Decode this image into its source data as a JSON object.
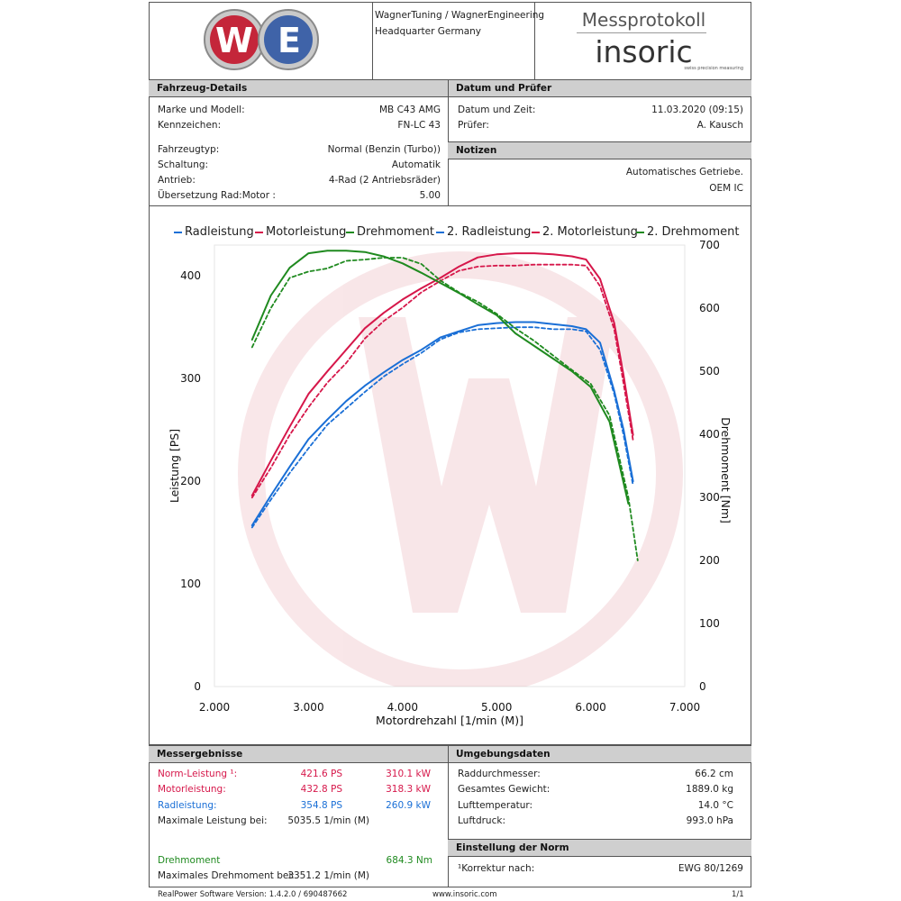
{
  "header": {
    "company_line1": "WagnerTuning / WagnerEngineering",
    "company_line2": "Headquarter Germany",
    "protocol_title": "Messprotokoll",
    "brand": "insoric",
    "brand_tagline": "swiss precision measuring",
    "logo_letters": "WTWE"
  },
  "vehicle": {
    "title": "Fahrzeug-Details",
    "rows": [
      {
        "label": "Marke und Modell:",
        "value": "MB C43 AMG"
      },
      {
        "label": "Kennzeichen:",
        "value": "FN-LC 43"
      },
      {
        "label": "Fahrzeugtyp:",
        "value": "Normal (Benzin (Turbo))"
      },
      {
        "label": "Schaltung:",
        "value": "Automatik"
      },
      {
        "label": "Antrieb:",
        "value": "4-Rad (2 Antriebsräder)"
      },
      {
        "label": "Übersetzung Rad:Motor :",
        "value": "5.00"
      }
    ]
  },
  "date": {
    "title": "Datum und Prüfer",
    "rows": [
      {
        "label": "Datum und Zeit:",
        "value": "11.03.2020 (09:15)"
      },
      {
        "label": "Prüfer:",
        "value": "A. Kausch"
      }
    ]
  },
  "notes": {
    "title": "Notizen",
    "line1": "Automatisches Getriebe.",
    "line2": "OEM IC"
  },
  "results": {
    "title": "Messergebnisse",
    "norm": {
      "label": "Norm-Leistung ¹:",
      "ps": "421.6 PS",
      "kw": "310.1 kW"
    },
    "motor": {
      "label": "Motorleistung:",
      "ps": "432.8 PS",
      "kw": "318.3 kW"
    },
    "rad": {
      "label": "Radleistung:",
      "ps": "354.8 PS",
      "kw": "260.9 kW"
    },
    "max_power": {
      "label": "Maximale Leistung bei:",
      "value": "5035.5 1/min (M)"
    },
    "torque": {
      "label": "Drehmoment",
      "value": "684.3 Nm"
    },
    "max_torque": {
      "label": "Maximales Drehmoment bei:",
      "value": "3351.2 1/min (M)"
    }
  },
  "environment": {
    "title": "Umgebungsdaten",
    "rows": [
      {
        "label": "Raddurchmesser:",
        "value": "66.2 cm"
      },
      {
        "label": "Gesamtes Gewicht:",
        "value": "1889.0 kg"
      },
      {
        "label": "Lufttemperatur:",
        "value": "14.0 °C"
      },
      {
        "label": "Luftdruck:",
        "value": "993.0 hPa"
      }
    ]
  },
  "norm_setting": {
    "title": "Einstellung der Norm",
    "label": "¹Korrektur nach:",
    "value": "EWG 80/1269"
  },
  "footer": {
    "software": "RealPower Software Version: 1.4.2.0 / 690487662",
    "website": "www.insoric.com",
    "page": "1/1"
  },
  "colors": {
    "power_wheel": "#1a6fd6",
    "power_engine": "#d6174a",
    "torque": "#1f8a1f",
    "section_bar": "#cfcfcf"
  },
  "chart_data": {
    "type": "line",
    "xlabel": "Motordrehzahl [1/min (M)]",
    "ylabel": "Leistung [PS]",
    "y2label": "Drehmoment [Nm]",
    "xlim": [
      2000,
      7000
    ],
    "ylim": [
      0,
      430
    ],
    "y2lim": [
      0,
      700
    ],
    "x_ticks": [
      2000,
      3000,
      4000,
      5000,
      6000,
      7000
    ],
    "x_tick_labels": [
      "2.000",
      "3.000",
      "4.000",
      "5.000",
      "6.000",
      "7.000"
    ],
    "y_ticks": [
      0,
      100,
      200,
      300,
      400
    ],
    "y2_ticks": [
      0,
      100,
      200,
      300,
      400,
      500,
      600,
      700
    ],
    "legend_position": "top",
    "grid": false,
    "series": [
      {
        "name": "Radleistung",
        "axis": "left",
        "style": "solid",
        "color": "#1a6fd6",
        "x": [
          2400,
          2600,
          2800,
          3000,
          3200,
          3400,
          3600,
          3800,
          4000,
          4200,
          4400,
          4600,
          4800,
          5000,
          5200,
          5400,
          5600,
          5800,
          5950,
          6100,
          6250,
          6350,
          6450
        ],
        "y": [
          157,
          186,
          214,
          241,
          260,
          278,
          293,
          306,
          318,
          328,
          340,
          346,
          352,
          354,
          355,
          355,
          353,
          351,
          348,
          335,
          288,
          250,
          200
        ]
      },
      {
        "name": "Motorleistung",
        "axis": "left",
        "style": "solid",
        "color": "#d6174a",
        "x": [
          2400,
          2600,
          2800,
          3000,
          3200,
          3400,
          3600,
          3800,
          4000,
          4200,
          4400,
          4600,
          4800,
          5000,
          5200,
          5400,
          5600,
          5800,
          5950,
          6100,
          6250,
          6350,
          6450
        ],
        "y": [
          186,
          220,
          253,
          285,
          307,
          328,
          349,
          364,
          377,
          388,
          398,
          409,
          418,
          421,
          422,
          422,
          421,
          419,
          416,
          397,
          354,
          303,
          245
        ]
      },
      {
        "name": "Drehmoment",
        "axis": "right",
        "style": "solid",
        "color": "#1f8a1f",
        "x": [
          2400,
          2600,
          2800,
          3000,
          3200,
          3400,
          3600,
          3800,
          4000,
          4200,
          4400,
          4600,
          4800,
          5000,
          5200,
          5400,
          5600,
          5800,
          6000,
          6200,
          6400
        ],
        "y": [
          550,
          620,
          664,
          687,
          691,
          691,
          689,
          682,
          671,
          656,
          640,
          624,
          606,
          589,
          560,
          540,
          520,
          500,
          475,
          420,
          290
        ]
      },
      {
        "name": "2. Radleistung",
        "axis": "left",
        "style": "dashed",
        "color": "#1a6fd6",
        "x": [
          2400,
          2600,
          2800,
          3000,
          3200,
          3400,
          3600,
          3800,
          4000,
          4200,
          4400,
          4600,
          4800,
          5000,
          5200,
          5400,
          5600,
          5800,
          5950,
          6100,
          6250,
          6350,
          6450
        ],
        "y": [
          155,
          182,
          208,
          232,
          255,
          271,
          287,
          302,
          314,
          325,
          338,
          345,
          348,
          349,
          350,
          350,
          348,
          348,
          346,
          328,
          285,
          245,
          196
        ]
      },
      {
        "name": "2. Motorleistung",
        "axis": "left",
        "style": "dashed",
        "color": "#d6174a",
        "x": [
          2400,
          2600,
          2800,
          3000,
          3200,
          3400,
          3600,
          3800,
          4000,
          4200,
          4400,
          4600,
          4800,
          5000,
          5200,
          5400,
          5600,
          5800,
          5950,
          6100,
          6250,
          6350,
          6450
        ],
        "y": [
          184,
          213,
          245,
          272,
          296,
          315,
          339,
          356,
          369,
          384,
          395,
          405,
          409,
          410,
          410,
          411,
          411,
          411,
          410,
          390,
          348,
          295,
          240
        ]
      },
      {
        "name": "2. Drehmoment",
        "axis": "right",
        "style": "dashed",
        "color": "#1f8a1f",
        "x": [
          2400,
          2600,
          2800,
          3000,
          3200,
          3400,
          3600,
          3800,
          4000,
          4200,
          4400,
          4600,
          4800,
          5000,
          5200,
          5400,
          5600,
          5800,
          6000,
          6200,
          6400,
          6500
        ],
        "y": [
          538,
          600,
          648,
          658,
          663,
          675,
          677,
          680,
          680,
          670,
          644,
          625,
          610,
          591,
          568,
          548,
          525,
          502,
          480,
          430,
          300,
          200
        ]
      }
    ]
  }
}
